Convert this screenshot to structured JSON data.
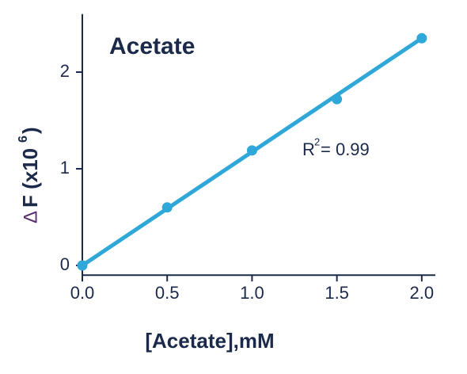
{
  "chart_data": {
    "type": "scatter",
    "title": "Acetate",
    "x_label": "[Acetate],mM",
    "y_label": {
      "symbol": "Δ",
      "text": "F (x10",
      "exponent": "6",
      "close": ")"
    },
    "annotation": {
      "text": "R",
      "superscript": "2",
      "rest": "= 0.99"
    },
    "x": [
      0,
      0.5,
      1,
      1.5,
      2
    ],
    "values": [
      0,
      0.6,
      1.19,
      1.72,
      2.35
    ],
    "color": "#2fa7d8",
    "fit": {
      "x": [
        0,
        2
      ],
      "y": [
        0,
        2.35
      ],
      "color": "#2fa7d8"
    },
    "xlim": [
      0,
      2.08
    ],
    "ylim": [
      -0.1,
      2.6
    ],
    "xticks": [
      {
        "value": 0,
        "label": "0.0"
      },
      {
        "value": 0.5,
        "label": "0.5"
      },
      {
        "value": 1,
        "label": "1.0"
      },
      {
        "value": 1.5,
        "label": "1.5"
      },
      {
        "value": 2,
        "label": "2.0"
      }
    ],
    "yticks": [
      0,
      1,
      2
    ],
    "grid": false
  }
}
